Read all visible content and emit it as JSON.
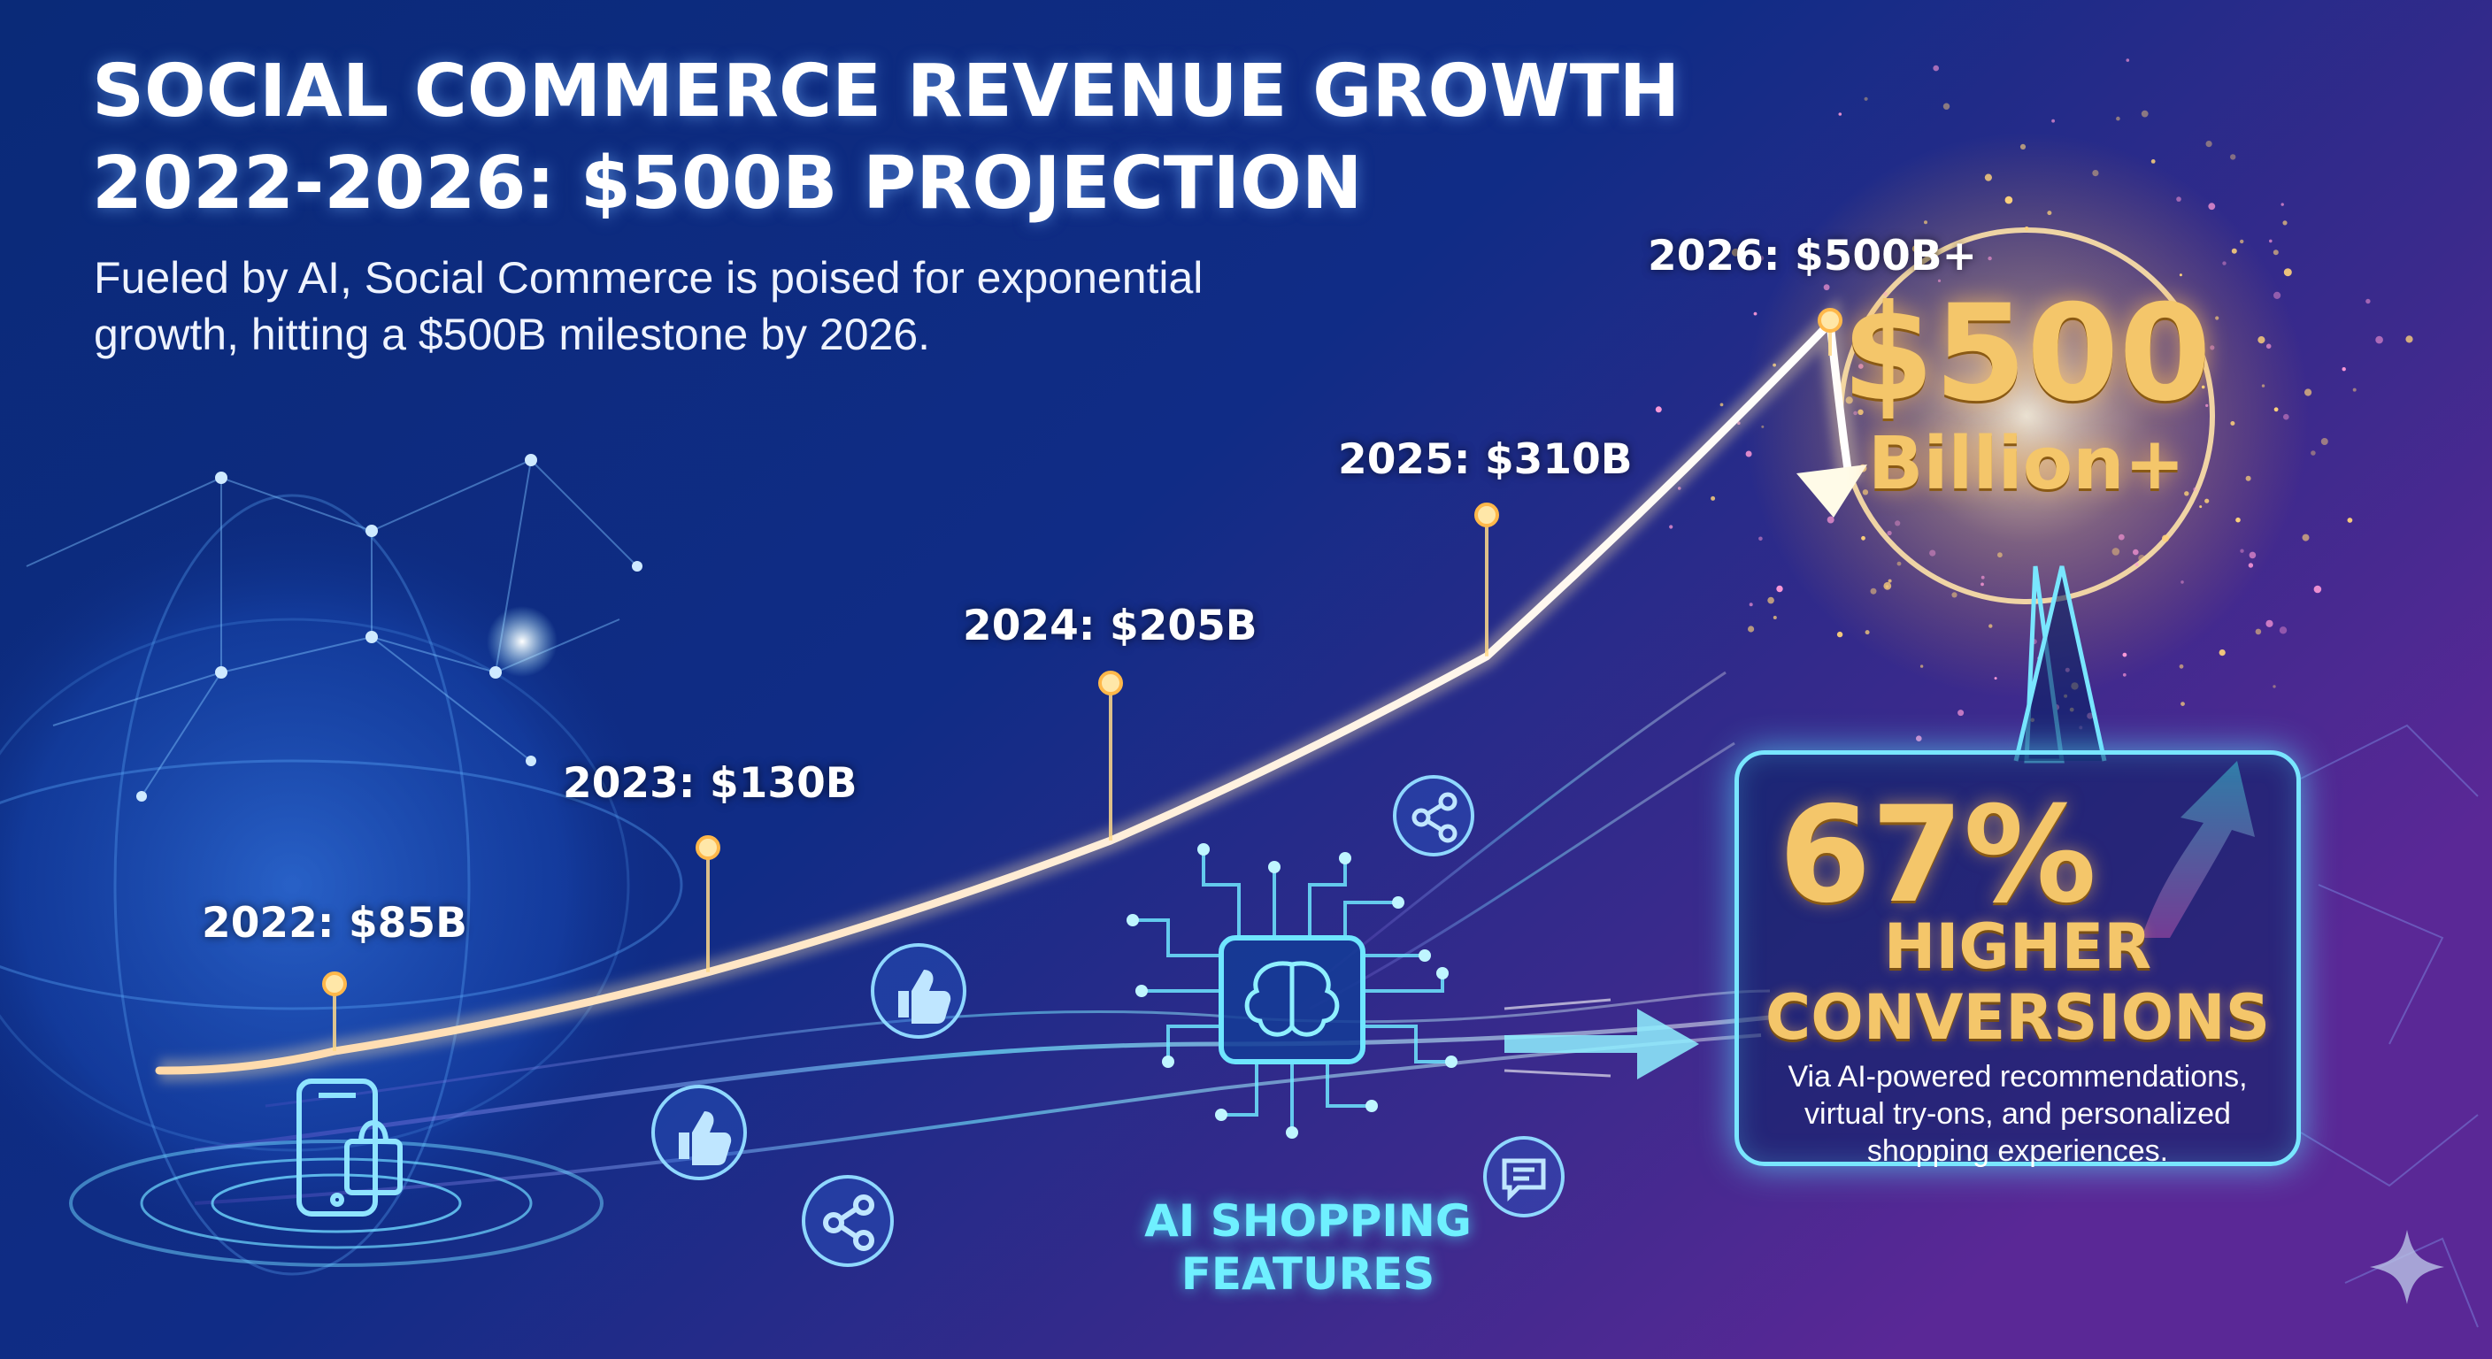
{
  "title_lines": [
    "SOCIAL COMMERCE REVENUE GROWTH",
    "2022-2026: $500B PROJECTION"
  ],
  "subtitle_lines": [
    "Fueled by AI, Social Commerce is poised for exponential",
    "growth, hitting a $500B milestone by 2026."
  ],
  "chart_data": {
    "type": "line",
    "title": "SOCIAL COMMERCE REVENUE GROWTH 2022-2026: $500B PROJECTION",
    "x": [
      2022,
      2023,
      2024,
      2025,
      2026
    ],
    "values": [
      85,
      130,
      205,
      310,
      500
    ],
    "point_labels": [
      "2022: $85B",
      "2023: $130B",
      "2024: $205B",
      "2025: $310B",
      "2026: $500B+"
    ],
    "unit": "$B",
    "legend": "none",
    "grid": false
  },
  "highlight": {
    "amount": "$500",
    "unit": "Billion+"
  },
  "callout": {
    "percent": "67%",
    "label_lines": [
      "HIGHER",
      "CONVERSIONS"
    ],
    "description_lines": [
      "Via AI-powered recommendations,",
      "virtual try-ons, and personalized",
      "shopping experiences."
    ]
  },
  "ai_feature": {
    "label_lines": [
      "AI SHOPPING",
      "FEATURES"
    ]
  },
  "colors": {
    "background_top": "#0b1e5c",
    "background_right": "#6a2a9a",
    "curve": "#fff3d6",
    "accent_gold": "#f4c66a",
    "accent_cyan": "#6ff0ff",
    "marker": "#ffd98a"
  },
  "icons": [
    "globe-network-icon",
    "smartphone-shopping-bag-icon",
    "thumbs-up-icon",
    "share-icon",
    "chat-bubble-icon",
    "ai-chip-brain-icon",
    "arrow-up-icon",
    "arrow-right-icon",
    "sparkle-icon"
  ]
}
